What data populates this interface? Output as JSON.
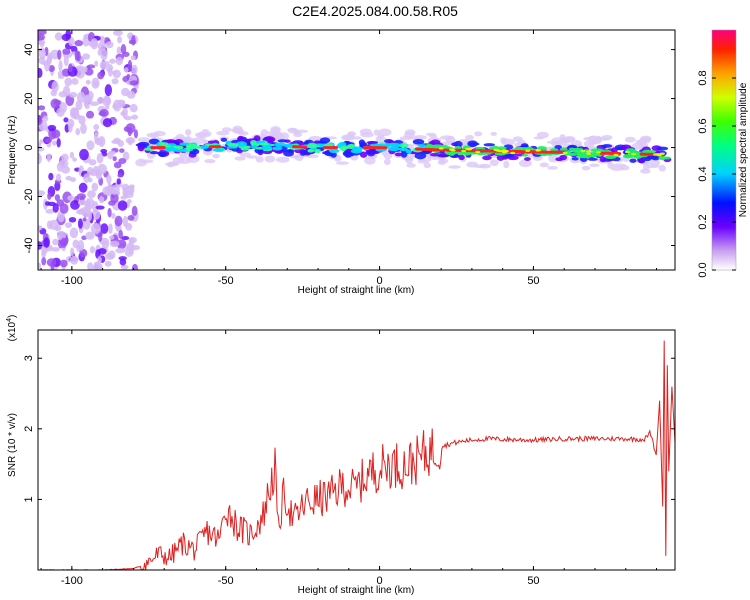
{
  "page_title": "C2E4.2025.084.00.58.R05",
  "chart_data": [
    {
      "type": "heatmap",
      "xlabel": "Height of straight line (km)",
      "ylabel": "Frequency (Hz)",
      "xlim": [
        -111,
        96
      ],
      "ylim": [
        -50,
        48
      ],
      "x_ticks": [
        -100,
        -50,
        0,
        50
      ],
      "x_tick_labels": [
        "-100",
        "-50",
        "0",
        "50"
      ],
      "y_ticks": [
        -40,
        -20,
        0,
        20,
        40
      ],
      "y_tick_labels": [
        "-40",
        "-20",
        "0",
        "20",
        "40"
      ],
      "colorbar": {
        "label": "Normalized spectral amplitude",
        "range": [
          0,
          1
        ],
        "ticks": [
          0.0,
          0.2,
          0.4,
          0.6,
          0.8
        ],
        "tick_labels": [
          "0.0",
          "0.2",
          "0.4",
          "0.6",
          "0.8"
        ]
      },
      "ridge": {
        "x": [
          -78,
          -60,
          -40,
          -20,
          0,
          20,
          40,
          60,
          80,
          94
        ],
        "y": [
          0,
          0,
          1,
          0,
          0,
          -1,
          -1.5,
          -2,
          -2.5,
          -3
        ]
      }
    },
    {
      "type": "line",
      "xlabel": "Height of straight line (km)",
      "ylabel": "SNR (10 * v/v)",
      "y_multiplier_label": "(x10",
      "y_multiplier_exp": "4",
      "xlim": [
        -111,
        96
      ],
      "ylim": [
        0,
        3.4
      ],
      "x_ticks": [
        -100,
        -50,
        0,
        50
      ],
      "x_tick_labels": [
        "-100",
        "-50",
        "0",
        "50"
      ],
      "y_ticks": [
        1,
        2,
        3
      ],
      "y_tick_labels": [
        "1",
        "2",
        "3"
      ],
      "color": "#e02020",
      "series": {
        "x": [
          -111,
          -90,
          -80,
          -76,
          -72,
          -68,
          -64,
          -60,
          -56,
          -52,
          -50,
          -46,
          -42,
          -38,
          -34,
          -33,
          -31,
          -28,
          -24,
          -20,
          -16,
          -12,
          -8,
          -4,
          0,
          4,
          8,
          12,
          16,
          20,
          24,
          28,
          32,
          36,
          40,
          50,
          60,
          70,
          80,
          86,
          88,
          90,
          91,
          92,
          92.5,
          93,
          93.5,
          94,
          95,
          96
        ],
        "y": [
          0,
          0,
          0.02,
          0.08,
          0.22,
          0.18,
          0.38,
          0.28,
          0.55,
          0.42,
          0.9,
          0.6,
          0.5,
          0.75,
          1.45,
          0.55,
          1.1,
          0.7,
          0.95,
          1.0,
          1.05,
          1.2,
          1.15,
          1.35,
          1.45,
          1.5,
          1.48,
          1.55,
          1.68,
          1.75,
          1.8,
          1.83,
          1.85,
          1.86,
          1.85,
          1.84,
          1.86,
          1.86,
          1.86,
          1.85,
          1.95,
          1.6,
          2.4,
          0.9,
          3.25,
          0.2,
          2.9,
          1.4,
          2.6,
          1.8
        ]
      }
    }
  ]
}
